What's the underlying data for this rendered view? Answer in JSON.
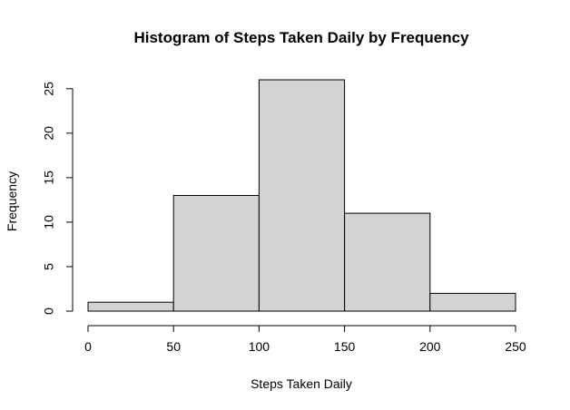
{
  "chart_data": {
    "type": "bar",
    "title": "Histogram of Steps Taken Daily by Frequency",
    "xlabel": "Steps Taken Daily",
    "ylabel": "Frequency",
    "bins": [
      {
        "from": 0,
        "to": 50,
        "value": 1
      },
      {
        "from": 50,
        "to": 100,
        "value": 13
      },
      {
        "from": 100,
        "to": 150,
        "value": 26
      },
      {
        "from": 150,
        "to": 200,
        "value": 11
      },
      {
        "from": 200,
        "to": 250,
        "value": 2
      }
    ],
    "xlim": [
      0,
      250
    ],
    "ylim": [
      0,
      26
    ],
    "xticks": [
      "0",
      "50",
      "100",
      "150",
      "200",
      "250"
    ],
    "yticks": [
      "0",
      "5",
      "10",
      "15",
      "20",
      "25"
    ],
    "bar_color": "#d3d3d3",
    "grid": false
  }
}
